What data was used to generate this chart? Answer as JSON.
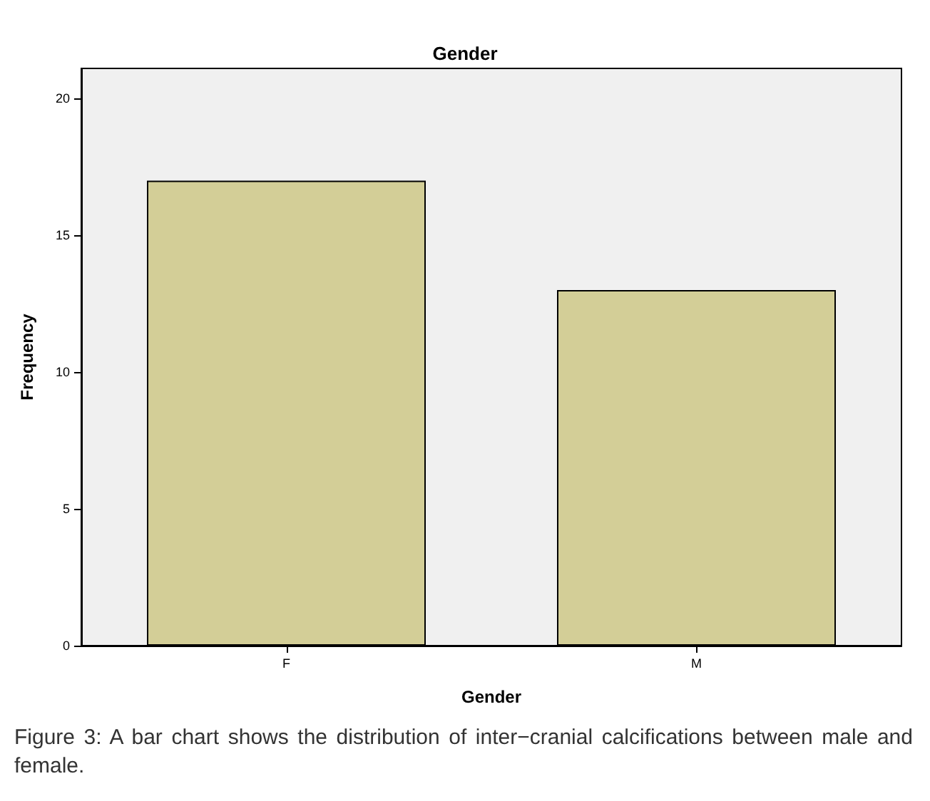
{
  "chart_data": {
    "type": "bar",
    "title": "Gender",
    "xlabel": "Gender",
    "ylabel": "Frequency",
    "categories": [
      "F",
      "M"
    ],
    "values": [
      17,
      13
    ],
    "color": "#d3ce97",
    "ylim": [
      0,
      21.1
    ],
    "yticks": [
      0,
      5,
      10,
      15,
      20
    ],
    "grid": false,
    "annotations": [
      "Figure 3: A bar chart shows the distribution of inter−cranial calcifications between male and female."
    ]
  }
}
